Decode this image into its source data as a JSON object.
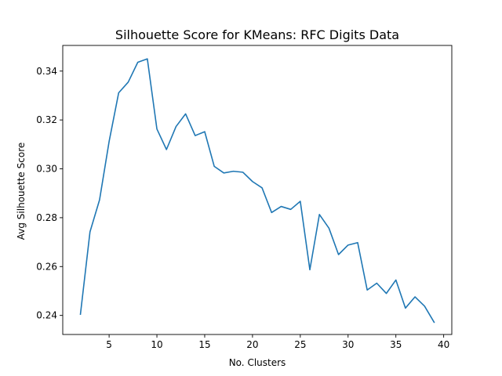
{
  "chart_data": {
    "type": "line",
    "title": "Silhouette Score for KMeans: RFC Digits Data",
    "xlabel": "No. Clusters",
    "ylabel": "Avg Silhouette Score",
    "xlim": [
      0.15,
      40.85
    ],
    "ylim": [
      0.2322,
      0.3505
    ],
    "xticks": [
      5,
      10,
      15,
      20,
      25,
      30,
      35,
      40
    ],
    "xtick_labels": [
      "5",
      "10",
      "15",
      "20",
      "25",
      "30",
      "35",
      "40"
    ],
    "yticks": [
      0.24,
      0.26,
      0.28,
      0.3,
      0.32,
      0.34
    ],
    "ytick_labels": [
      "0.24",
      "0.26",
      "0.28",
      "0.30",
      "0.32",
      "0.34"
    ],
    "grid": false,
    "series": [
      {
        "color": "#1f77b4",
        "x": [
          2,
          3,
          4,
          5,
          6,
          7,
          8,
          9,
          10,
          11,
          12,
          13,
          14,
          15,
          16,
          17,
          18,
          19,
          20,
          21,
          22,
          23,
          24,
          25,
          26,
          27,
          28,
          29,
          30,
          31,
          32,
          33,
          34,
          35,
          36,
          37,
          38,
          39
        ],
        "y": [
          0.2405,
          0.2742,
          0.2873,
          0.3112,
          0.3311,
          0.3355,
          0.3436,
          0.345,
          0.3163,
          0.3079,
          0.3173,
          0.3225,
          0.3136,
          0.3152,
          0.301,
          0.2983,
          0.299,
          0.2986,
          0.2948,
          0.2922,
          0.2821,
          0.2846,
          0.2834,
          0.2867,
          0.2587,
          0.2813,
          0.2757,
          0.2649,
          0.2688,
          0.2698,
          0.2504,
          0.2532,
          0.249,
          0.2545,
          0.243,
          0.2476,
          0.2438,
          0.2372
        ]
      }
    ]
  }
}
